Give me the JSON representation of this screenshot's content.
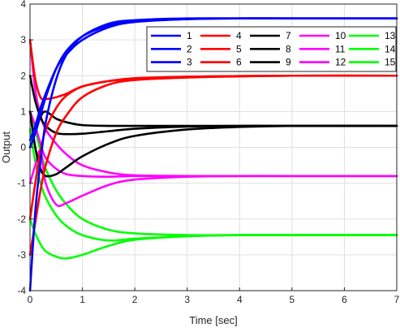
{
  "chart_data": {
    "type": "line",
    "title": "",
    "xlabel": "Time [sec]",
    "ylabel": "Output",
    "xlim": [
      0,
      7
    ],
    "ylim": [
      -4,
      4
    ],
    "xticks": [
      "0",
      "1",
      "2",
      "3",
      "4",
      "5",
      "6",
      "7"
    ],
    "yticks": [
      "-4",
      "-3",
      "-2",
      "-1",
      "0",
      "1",
      "2",
      "3",
      "4"
    ],
    "grid": true,
    "legend_position": "top-right",
    "colors": {
      "blue": "#0000ff",
      "red": "#ff0000",
      "black": "#000000",
      "magenta": "#ff00ff",
      "green": "#00ff00"
    },
    "series": [
      {
        "name": "1",
        "color": "blue",
        "x": [
          0,
          0.1,
          0.2,
          0.3,
          0.5,
          0.7,
          1.0,
          1.5,
          2.0,
          3.0,
          4.0,
          5.0,
          7.0
        ],
        "y": [
          -4.0,
          -1.8,
          -0.4,
          0.7,
          1.9,
          2.6,
          3.1,
          3.45,
          3.55,
          3.6,
          3.6,
          3.6,
          3.6
        ]
      },
      {
        "name": "2",
        "color": "blue",
        "x": [
          0,
          0.1,
          0.2,
          0.3,
          0.5,
          0.7,
          1.0,
          1.5,
          2.0,
          3.0,
          4.0,
          5.0,
          7.0
        ],
        "y": [
          0.0,
          0.4,
          0.9,
          1.4,
          2.2,
          2.7,
          3.1,
          3.4,
          3.52,
          3.58,
          3.6,
          3.6,
          3.6
        ]
      },
      {
        "name": "3",
        "color": "blue",
        "x": [
          0,
          0.1,
          0.2,
          0.3,
          0.5,
          0.7,
          1.0,
          1.5,
          2.0,
          3.0,
          4.0,
          5.0,
          7.0
        ],
        "y": [
          0.2,
          0.6,
          1.1,
          1.5,
          2.2,
          2.6,
          3.0,
          3.35,
          3.5,
          3.58,
          3.6,
          3.6,
          3.6
        ]
      },
      {
        "name": "4",
        "color": "red",
        "x": [
          0,
          0.1,
          0.2,
          0.3,
          0.5,
          0.7,
          1.0,
          1.5,
          2.0,
          3.0,
          4.0,
          5.0,
          7.0
        ],
        "y": [
          -3.0,
          -2.1,
          -1.2,
          -0.5,
          0.4,
          0.9,
          1.4,
          1.75,
          1.88,
          1.95,
          1.98,
          2.0,
          2.0
        ]
      },
      {
        "name": "5",
        "color": "red",
        "x": [
          0,
          0.1,
          0.2,
          0.3,
          0.5,
          0.7,
          1.0,
          1.5,
          2.0,
          3.0,
          4.0,
          5.0,
          7.0
        ],
        "y": [
          3.0,
          1.9,
          1.4,
          1.35,
          1.4,
          1.5,
          1.7,
          1.85,
          1.92,
          1.97,
          1.99,
          2.0,
          2.0
        ]
      },
      {
        "name": "6",
        "color": "red",
        "x": [
          0,
          0.1,
          0.2,
          0.3,
          0.5,
          0.7,
          1.0,
          1.5,
          2.0,
          3.0,
          4.0,
          5.0,
          7.0
        ],
        "y": [
          -2.0,
          -1.0,
          -0.1,
          0.5,
          1.1,
          1.45,
          1.7,
          1.85,
          1.93,
          1.97,
          1.99,
          2.0,
          2.0
        ]
      },
      {
        "name": "7",
        "color": "black",
        "x": [
          0,
          0.1,
          0.2,
          0.3,
          0.5,
          0.7,
          1.0,
          1.5,
          2.0,
          3.0,
          4.0,
          5.0,
          7.0
        ],
        "y": [
          0.0,
          0.4,
          0.85,
          1.0,
          0.8,
          0.7,
          0.62,
          0.6,
          0.6,
          0.6,
          0.6,
          0.6,
          0.6
        ]
      },
      {
        "name": "8",
        "color": "black",
        "x": [
          0,
          0.1,
          0.2,
          0.3,
          0.5,
          0.7,
          1.0,
          1.5,
          2.0,
          3.0,
          4.0,
          5.0,
          7.0
        ],
        "y": [
          2.0,
          1.3,
          0.85,
          0.6,
          0.4,
          0.37,
          0.38,
          0.45,
          0.52,
          0.58,
          0.6,
          0.6,
          0.6
        ]
      },
      {
        "name": "9",
        "color": "black",
        "x": [
          0,
          0.1,
          0.2,
          0.3,
          0.5,
          0.7,
          1.0,
          1.5,
          2.0,
          3.0,
          4.0,
          5.0,
          7.0
        ],
        "y": [
          1.0,
          0.0,
          -0.6,
          -0.8,
          -0.75,
          -0.55,
          -0.25,
          0.1,
          0.32,
          0.5,
          0.57,
          0.6,
          0.6
        ]
      },
      {
        "name": "10",
        "color": "magenta",
        "x": [
          0,
          0.1,
          0.2,
          0.3,
          0.5,
          0.7,
          1.0,
          1.5,
          2.0,
          3.0,
          4.0,
          5.0,
          7.0
        ],
        "y": [
          3.0,
          1.6,
          0.9,
          0.5,
          0.1,
          -0.2,
          -0.5,
          -0.7,
          -0.78,
          -0.8,
          -0.8,
          -0.8,
          -0.8
        ]
      },
      {
        "name": "11",
        "color": "magenta",
        "x": [
          0,
          0.1,
          0.2,
          0.3,
          0.5,
          0.7,
          1.0,
          1.5,
          2.0,
          3.0,
          4.0,
          5.0,
          7.0
        ],
        "y": [
          1.0,
          0.6,
          0.1,
          -0.3,
          -0.6,
          -0.75,
          -0.8,
          -0.82,
          -0.8,
          -0.8,
          -0.8,
          -0.8,
          -0.8
        ]
      },
      {
        "name": "12",
        "color": "magenta",
        "x": [
          0,
          0.1,
          0.2,
          0.3,
          0.5,
          0.7,
          1.0,
          1.5,
          2.0,
          3.0,
          4.0,
          5.0,
          7.0
        ],
        "y": [
          -1.0,
          -0.5,
          -0.1,
          -1.0,
          -1.6,
          -1.55,
          -1.35,
          -1.05,
          -0.9,
          -0.82,
          -0.8,
          -0.8,
          -0.8
        ]
      },
      {
        "name": "13",
        "color": "green",
        "x": [
          0,
          0.1,
          0.2,
          0.3,
          0.5,
          0.7,
          1.0,
          1.5,
          2.0,
          3.0,
          4.0,
          5.0,
          7.0
        ],
        "y": [
          1.0,
          0.5,
          -0.1,
          -0.6,
          -1.2,
          -1.6,
          -2.0,
          -2.3,
          -2.4,
          -2.45,
          -2.45,
          -2.45,
          -2.45
        ]
      },
      {
        "name": "14",
        "color": "green",
        "x": [
          0,
          0.1,
          0.2,
          0.3,
          0.5,
          0.7,
          1.0,
          1.5,
          2.0,
          3.0,
          4.0,
          5.0,
          7.0
        ],
        "y": [
          -2.0,
          -2.4,
          -2.7,
          -2.9,
          -3.05,
          -3.1,
          -3.0,
          -2.75,
          -2.58,
          -2.48,
          -2.45,
          -2.45,
          -2.45
        ]
      },
      {
        "name": "15",
        "color": "green",
        "x": [
          0,
          0.1,
          0.2,
          0.3,
          0.5,
          0.7,
          1.0,
          1.5,
          2.0,
          3.0,
          4.0,
          5.0,
          7.0
        ],
        "y": [
          0.5,
          -0.4,
          -1.0,
          -1.4,
          -1.9,
          -2.2,
          -2.45,
          -2.6,
          -2.55,
          -2.48,
          -2.45,
          -2.45,
          -2.45
        ]
      }
    ]
  }
}
